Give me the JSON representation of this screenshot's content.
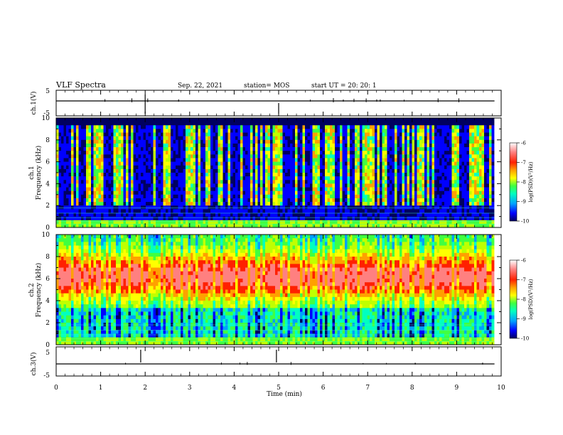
{
  "header": {
    "title": "VLF Spectra",
    "date": "Sep. 22, 2021",
    "station": "station= MOS",
    "start": "start  UT =   20: 20: 1"
  },
  "chart_data": [
    {
      "type": "line",
      "ylabel": "ch.1(V)",
      "xlim": [
        0,
        10
      ],
      "ylim": [
        -5,
        5
      ],
      "yticks": [
        "5",
        "-5"
      ],
      "series": [
        {
          "x": [
            0,
            9.85
          ],
          "y": [
            0,
            0
          ]
        }
      ]
    },
    {
      "type": "heatmap",
      "ylabel_line1": "ch.1",
      "ylabel_line2": "Frequency (kHz)",
      "xlim": [
        0,
        10
      ],
      "ylim": [
        0,
        10
      ],
      "yticks": [
        "0",
        "2",
        "4",
        "6",
        "8",
        "10"
      ],
      "data_end_min": 9.85,
      "colorbar": {
        "label": "log(PSD)(V²/Hz)",
        "range": [
          -10,
          -6
        ],
        "ticks": [
          "-6",
          "-7",
          "-8",
          "-9",
          "-10"
        ]
      }
    },
    {
      "type": "heatmap",
      "ylabel_line1": "ch.2",
      "ylabel_line2": "Frequency (kHz)",
      "xlim": [
        0,
        10
      ],
      "ylim": [
        0,
        10
      ],
      "yticks": [
        "0",
        "2",
        "4",
        "6",
        "8",
        "10"
      ],
      "data_end_min": 9.85,
      "colorbar": {
        "label": "log(PSD)(V²/Hz)",
        "range": [
          -10,
          -6
        ],
        "ticks": [
          "-6",
          "-7",
          "-8",
          "-9",
          "-10"
        ]
      }
    },
    {
      "type": "line",
      "ylabel": "ch.3(V)",
      "xlabel": "Time  (min)",
      "xlim": [
        0,
        10
      ],
      "ylim": [
        -5,
        5
      ],
      "xticks": [
        "0",
        "1",
        "2",
        "3",
        "4",
        "5",
        "6",
        "7",
        "8",
        "9",
        "10"
      ],
      "yticks": [
        "5",
        "-5"
      ],
      "series": [
        {
          "x": [
            0,
            9.85
          ],
          "y": [
            0,
            0
          ]
        }
      ]
    }
  ],
  "colors": {
    "colormap": [
      "#000060",
      "#0000ff",
      "#00a0ff",
      "#00ffc0",
      "#40ff40",
      "#c0ff00",
      "#ffff00",
      "#ffa000",
      "#ff2000",
      "#ff8080",
      "#ffffff"
    ]
  }
}
